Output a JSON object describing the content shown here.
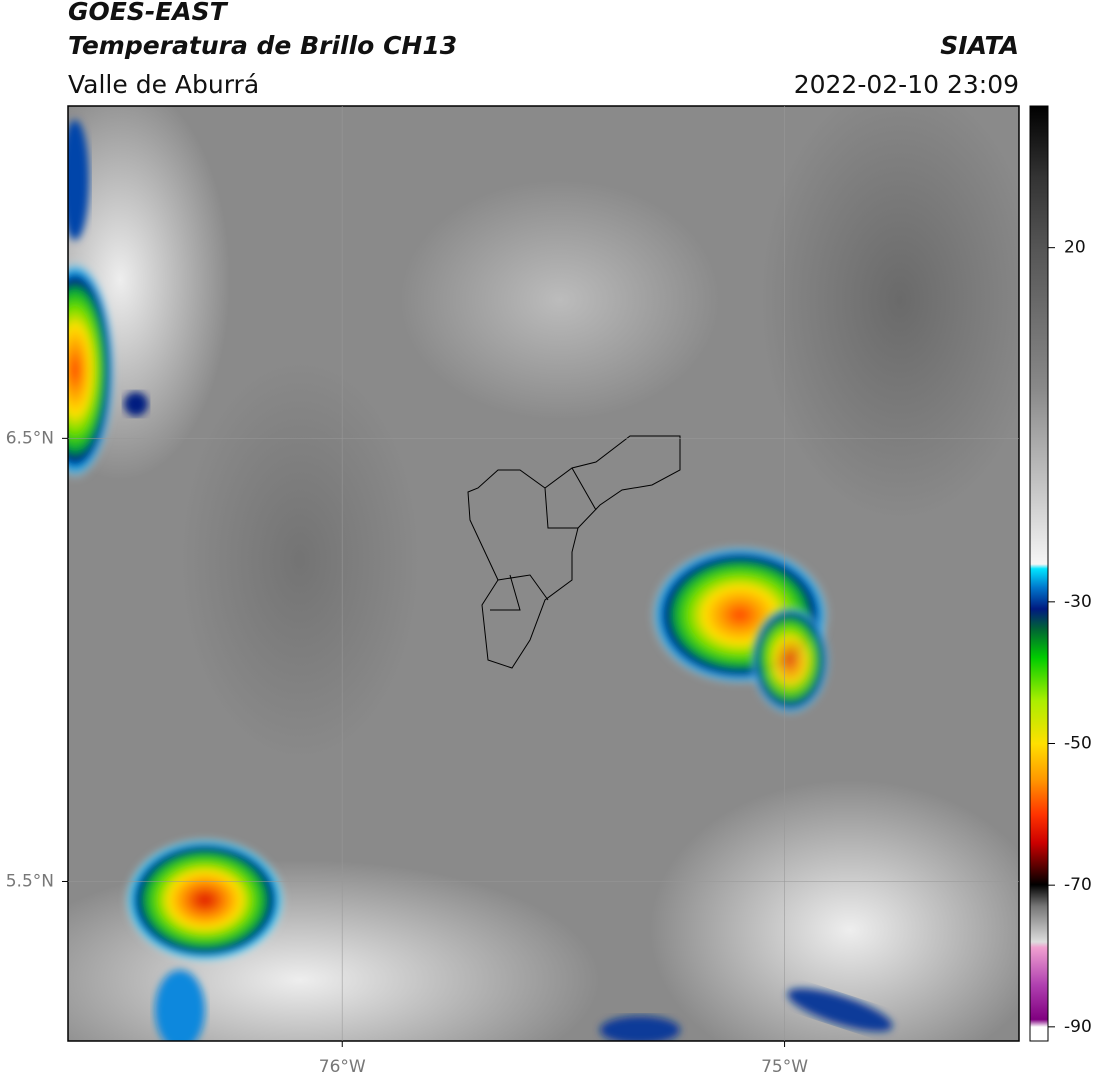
{
  "header": {
    "satellite": "GOES-EAST",
    "product": "Temperatura de Brillo CH13",
    "region": "Valle de Aburrá",
    "source": "SIATA",
    "datetime": "2022-02-10 23:09"
  },
  "map": {
    "xlim": [
      -76.62,
      -74.47
    ],
    "ylim": [
      5.14,
      7.25
    ],
    "xticks": [
      {
        "value": -76,
        "label": "76°W"
      },
      {
        "value": -75,
        "label": "75°W"
      }
    ],
    "yticks": [
      {
        "value": 5.5,
        "label": "5.5°N"
      },
      {
        "value": 6.5,
        "label": "6.5°N"
      }
    ],
    "grid": true
  },
  "colorbar": {
    "lim": [
      -92,
      40
    ],
    "ticks": [
      -90,
      -70,
      -50,
      -30,
      20
    ]
  }
}
